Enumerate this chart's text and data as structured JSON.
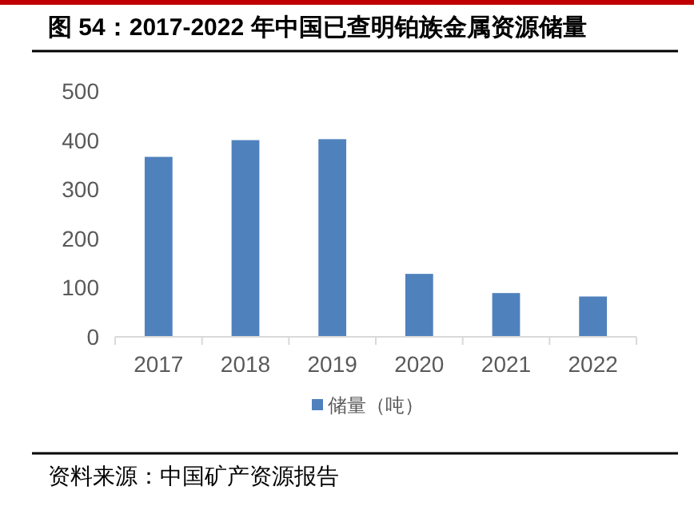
{
  "chart_data": {
    "type": "bar",
    "title": "图 54：2017-2022 年中国已查明铂族金属资源储量",
    "categories": [
      "2017",
      "2018",
      "2019",
      "2020",
      "2021",
      "2022"
    ],
    "series": [
      {
        "name": "储量（吨）",
        "color": "#4f81bd",
        "values": [
          366,
          400,
          402,
          128,
          89,
          82
        ]
      }
    ],
    "ylim": [
      0,
      500
    ],
    "yticks": [
      0,
      100,
      200,
      300,
      400,
      500
    ],
    "grid": false,
    "legend": "bottom",
    "annotations": [
      "资料来源：中国矿产资源报告"
    ]
  }
}
